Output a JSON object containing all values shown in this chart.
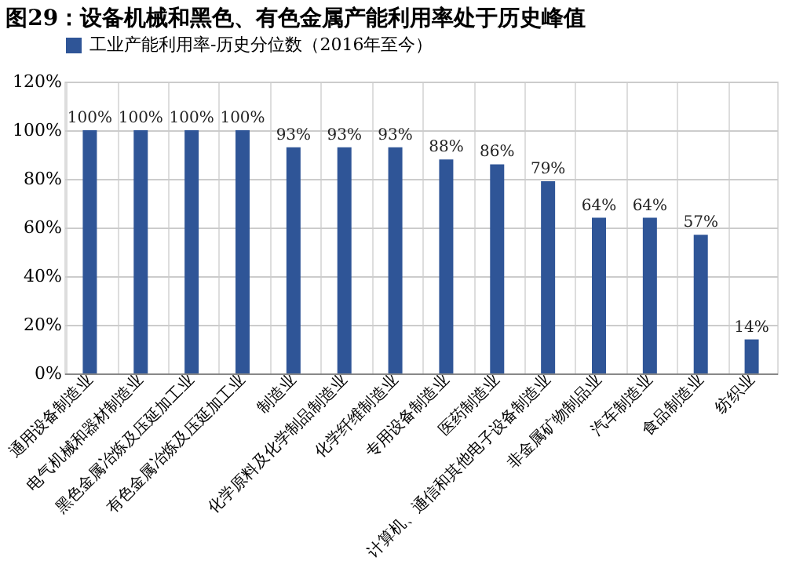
{
  "chart_data": {
    "type": "bar",
    "title": "图29：设备机械和黑色、有色金属产能利用率处于历史峰值",
    "categories": [
      "通用设备制造业",
      "电气机械和器材制造业",
      "黑色金属冶炼及压延加工业",
      "有色金属冶炼及压延加工业",
      "制造业",
      "化学原料及化学制品制造业",
      "化学纤维制造业",
      "专用设备制造业",
      "医药制造业",
      "计算机、通信和其他电子设备制造业",
      "非金属矿物制品业",
      "汽车制造业",
      "食品制造业",
      "纺织业"
    ],
    "series": [
      {
        "name": "工业产能利用率-历史分位数（2016年至今）",
        "color": "#2f5597",
        "values": [
          100,
          100,
          100,
          100,
          93,
          93,
          93,
          88,
          86,
          79,
          64,
          64,
          57,
          14
        ],
        "value_labels": [
          "100%",
          "100%",
          "100%",
          "100%",
          "93%",
          "93%",
          "93%",
          "88%",
          "86%",
          "79%",
          "64%",
          "64%",
          "57%",
          "14%"
        ]
      }
    ],
    "ylim": [
      0,
      120
    ],
    "yticks": [
      {
        "value": 0,
        "label": "0%"
      },
      {
        "value": 20,
        "label": "20%"
      },
      {
        "value": 40,
        "label": "40%"
      },
      {
        "value": 60,
        "label": "60%"
      },
      {
        "value": 80,
        "label": "80%"
      },
      {
        "value": 100,
        "label": "100%"
      },
      {
        "value": 120,
        "label": "120%"
      }
    ],
    "grid": true,
    "legend": "top"
  }
}
